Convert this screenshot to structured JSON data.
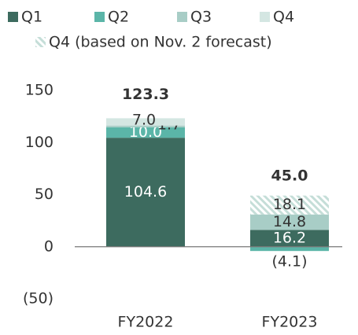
{
  "chart_data": {
    "type": "stacked_bar",
    "categories": [
      "FY2022",
      "FY2023"
    ],
    "series": [
      {
        "name": "Q1",
        "color": "#3d6b5f",
        "values": [
          104.6,
          16.2
        ],
        "value_labels": [
          "104.6",
          "16.2"
        ]
      },
      {
        "name": "Q2",
        "color": "#5bb5a8",
        "values": [
          10.0,
          -4.1
        ],
        "value_labels": [
          "10.0",
          "(4.1)"
        ]
      },
      {
        "name": "Q3",
        "color": "#a8cdc6",
        "values": [
          1.7,
          14.8
        ],
        "value_labels": [
          "1.7",
          "14.8"
        ]
      },
      {
        "name": "Q4",
        "color": "#d4e6e2",
        "values": [
          7.0,
          null
        ],
        "value_labels": [
          "7.0",
          null
        ]
      },
      {
        "name": "Q4 (based on Nov. 2 forecast)",
        "color": "#c5ded8",
        "hatched": true,
        "values": [
          null,
          18.1
        ],
        "value_labels": [
          null,
          "18.1"
        ]
      }
    ],
    "totals": [
      123.3,
      45.0
    ],
    "total_labels": [
      "123.3",
      "45.0"
    ],
    "ylim": [
      -50,
      150
    ],
    "yticks": [
      {
        "value": -50,
        "label": "(50)"
      },
      0,
      50,
      100,
      150
    ]
  }
}
